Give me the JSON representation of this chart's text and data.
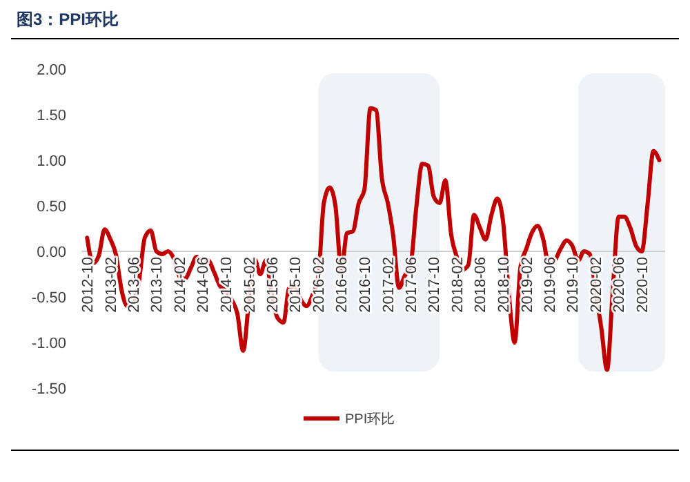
{
  "chart_data": {
    "type": "line",
    "title": "图3：PPI环比",
    "x": [
      "2012-10",
      "2012-11",
      "2012-12",
      "2013-01",
      "2013-02",
      "2013-03",
      "2013-04",
      "2013-05",
      "2013-06",
      "2013-07",
      "2013-08",
      "2013-09",
      "2013-10",
      "2013-11",
      "2013-12",
      "2014-01",
      "2014-02",
      "2014-03",
      "2014-04",
      "2014-05",
      "2014-06",
      "2014-07",
      "2014-08",
      "2014-09",
      "2014-10",
      "2014-11",
      "2014-12",
      "2015-01",
      "2015-02",
      "2015-03",
      "2015-04",
      "2015-05",
      "2015-06",
      "2015-07",
      "2015-08",
      "2015-09",
      "2015-10",
      "2015-11",
      "2015-12",
      "2016-01",
      "2016-02",
      "2016-03",
      "2016-04",
      "2016-05",
      "2016-06",
      "2016-07",
      "2016-08",
      "2016-09",
      "2016-10",
      "2016-11",
      "2016-12",
      "2017-01",
      "2017-02",
      "2017-03",
      "2017-04",
      "2017-05",
      "2017-06",
      "2017-07",
      "2017-08",
      "2017-09",
      "2017-10",
      "2017-11",
      "2017-12",
      "2018-01",
      "2018-02",
      "2018-03",
      "2018-04",
      "2018-05",
      "2018-06",
      "2018-07",
      "2018-08",
      "2018-09",
      "2018-10",
      "2018-11",
      "2018-12",
      "2019-01",
      "2019-02",
      "2019-03",
      "2019-04",
      "2019-05",
      "2019-06",
      "2019-07",
      "2019-08",
      "2019-09",
      "2019-10",
      "2019-11",
      "2019-12",
      "2020-01",
      "2020-02",
      "2020-03",
      "2020-04",
      "2020-05",
      "2020-06",
      "2020-07",
      "2020-08",
      "2020-09",
      "2020-10",
      "2020-11",
      "2020-12",
      "2021-01"
    ],
    "series": [
      {
        "name": "PPI环比",
        "color": "#c00000",
        "values": [
          0.15,
          -0.13,
          -0.05,
          0.24,
          0.13,
          -0.03,
          -0.43,
          -0.6,
          -0.58,
          -0.33,
          0.15,
          0.23,
          0.0,
          -0.03,
          0.0,
          -0.08,
          -0.28,
          -0.3,
          -0.18,
          -0.06,
          -0.17,
          -0.1,
          -0.23,
          -0.38,
          -0.43,
          -0.53,
          -0.68,
          -1.09,
          -0.53,
          -0.08,
          -0.25,
          -0.1,
          -0.48,
          -0.73,
          -0.78,
          -0.4,
          -0.38,
          -0.53,
          -0.6,
          -0.48,
          -0.28,
          0.53,
          0.7,
          0.5,
          -0.2,
          0.2,
          0.22,
          0.53,
          0.68,
          1.57,
          1.55,
          0.8,
          0.53,
          0.18,
          -0.4,
          -0.27,
          -0.15,
          0.48,
          0.96,
          0.94,
          0.6,
          0.53,
          0.78,
          0.18,
          -0.07,
          -0.2,
          -0.15,
          0.4,
          0.26,
          0.13,
          0.4,
          0.58,
          0.33,
          -0.48,
          -1.0,
          -0.17,
          0.03,
          0.2,
          0.28,
          0.13,
          -0.17,
          -0.1,
          0.03,
          0.12,
          0.06,
          -0.1,
          0.0,
          -0.03,
          -0.45,
          -0.83,
          -1.3,
          -0.43,
          0.38,
          0.38,
          0.26,
          0.06,
          0.0,
          0.53,
          1.1,
          1.0
        ]
      }
    ],
    "xlim": [
      "2012-09",
      "2021-02"
    ],
    "xticks": [
      "2012-10",
      "2013-02",
      "2013-06",
      "2013-10",
      "2014-02",
      "2014-06",
      "2014-10",
      "2015-02",
      "2015-06",
      "2015-10",
      "2016-02",
      "2016-06",
      "2016-10",
      "2017-02",
      "2017-06",
      "2017-10",
      "2018-02",
      "2018-06",
      "2018-10",
      "2019-02",
      "2019-06",
      "2019-10",
      "2020-02",
      "2020-06",
      "2020-10"
    ],
    "ylim": [
      -1.5,
      2.0
    ],
    "yticks": [
      {
        "value": 2,
        "label": "2.00"
      },
      {
        "value": 1.5,
        "label": "1.50"
      },
      {
        "value": 1,
        "label": "1.00"
      },
      {
        "value": 0.5,
        "label": "0.50"
      },
      {
        "value": 0,
        "label": "0.00"
      },
      {
        "value": -0.5,
        "label": "-0.50"
      },
      {
        "value": -1,
        "label": "-1.00"
      },
      {
        "value": -1.5,
        "label": "-1.50"
      }
    ],
    "bands": [
      {
        "axis": "x",
        "from": "2016-02",
        "to": "2017-11",
        "color": "#eef3f8"
      },
      {
        "axis": "x",
        "from": "2019-11",
        "to": "2021-02",
        "color": "#eef3f8"
      }
    ],
    "line_style": "solid",
    "marker": "none",
    "legend": "bottom"
  }
}
